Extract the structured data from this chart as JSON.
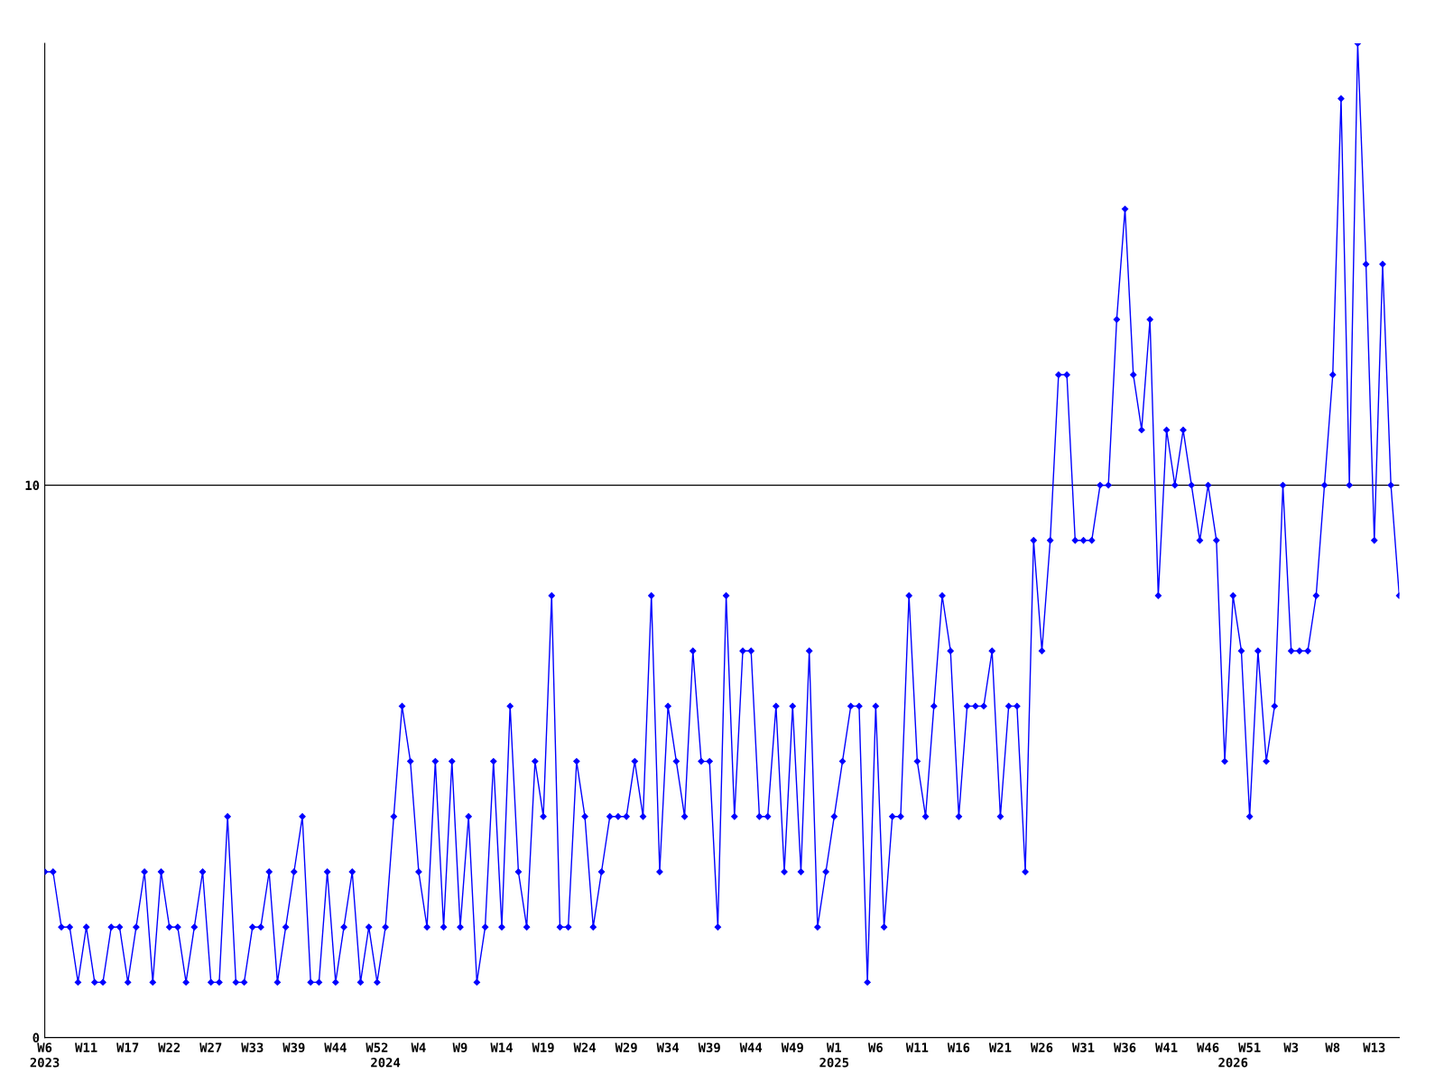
{
  "chart_data": {
    "type": "line",
    "categories": [
      "W6\n2023",
      null,
      null,
      null,
      null,
      "W11",
      null,
      null,
      null,
      null,
      "W17",
      null,
      null,
      null,
      null,
      "W22",
      null,
      null,
      null,
      null,
      "W27",
      null,
      null,
      null,
      null,
      "W33",
      null,
      null,
      null,
      null,
      "W39",
      null,
      null,
      null,
      null,
      "W44",
      null,
      null,
      null,
      null,
      "W52",
      "\n2024",
      null,
      null,
      null,
      "W4",
      null,
      null,
      null,
      null,
      "W9",
      null,
      null,
      null,
      null,
      "W14",
      null,
      null,
      null,
      null,
      "W19",
      null,
      null,
      null,
      null,
      "W24",
      null,
      null,
      null,
      null,
      "W29",
      null,
      null,
      null,
      null,
      "W34",
      null,
      null,
      null,
      null,
      "W39",
      null,
      null,
      null,
      null,
      "W44",
      null,
      null,
      null,
      null,
      "W49",
      null,
      null,
      null,
      null,
      "W1\n2025",
      null,
      null,
      null,
      null,
      "W6",
      null,
      null,
      null,
      null,
      "W11",
      null,
      null,
      null,
      null,
      "W16",
      null,
      null,
      null,
      null,
      "W21",
      null,
      null,
      null,
      null,
      "W26",
      null,
      null,
      null,
      null,
      "W31",
      null,
      null,
      null,
      null,
      "W36",
      null,
      null,
      null,
      null,
      "W41",
      null,
      null,
      null,
      null,
      "W46",
      null,
      null,
      "\n2026",
      null,
      "W51",
      null,
      null,
      null,
      null,
      "W3",
      null,
      null,
      null,
      null,
      "W8",
      null,
      null,
      null,
      null,
      "W13",
      null,
      null,
      null
    ],
    "series": [
      {
        "color": "#0000ff",
        "values": [
          3,
          3,
          2,
          2,
          1,
          2,
          1,
          1,
          2,
          2,
          1,
          2,
          3,
          1,
          3,
          2,
          2,
          1,
          2,
          3,
          1,
          1,
          4,
          1,
          1,
          2,
          2,
          3,
          1,
          2,
          3,
          4,
          1,
          1,
          3,
          1,
          2,
          3,
          1,
          2,
          1,
          2,
          4,
          6,
          5,
          3,
          2,
          5,
          2,
          5,
          2,
          4,
          1,
          2,
          5,
          2,
          6,
          3,
          2,
          5,
          4,
          8,
          2,
          2,
          5,
          4,
          2,
          3,
          4,
          4,
          4,
          5,
          4,
          8,
          3,
          6,
          5,
          4,
          7,
          5,
          5,
          2,
          8,
          4,
          7,
          7,
          4,
          4,
          6,
          3,
          6,
          3,
          7,
          2,
          3,
          4,
          5,
          6,
          6,
          1,
          6,
          2,
          4,
          4,
          8,
          5,
          4,
          6,
          8,
          7,
          4,
          6,
          6,
          6,
          7,
          4,
          6,
          6,
          3,
          9,
          7,
          9,
          12,
          12,
          9,
          9,
          9,
          10,
          10,
          13,
          15,
          12,
          11,
          13,
          8,
          11,
          10,
          11,
          10,
          9,
          10,
          9,
          5,
          8,
          7,
          4,
          7,
          5,
          6,
          10,
          7,
          7,
          7,
          8,
          10,
          12,
          17,
          10,
          18,
          14,
          9,
          14,
          10,
          8
        ]
      }
    ],
    "ylim": [
      0,
      18
    ],
    "yticks": [
      0,
      10
    ],
    "grid": "y",
    "marker": "diamond",
    "line_style": "solid"
  }
}
